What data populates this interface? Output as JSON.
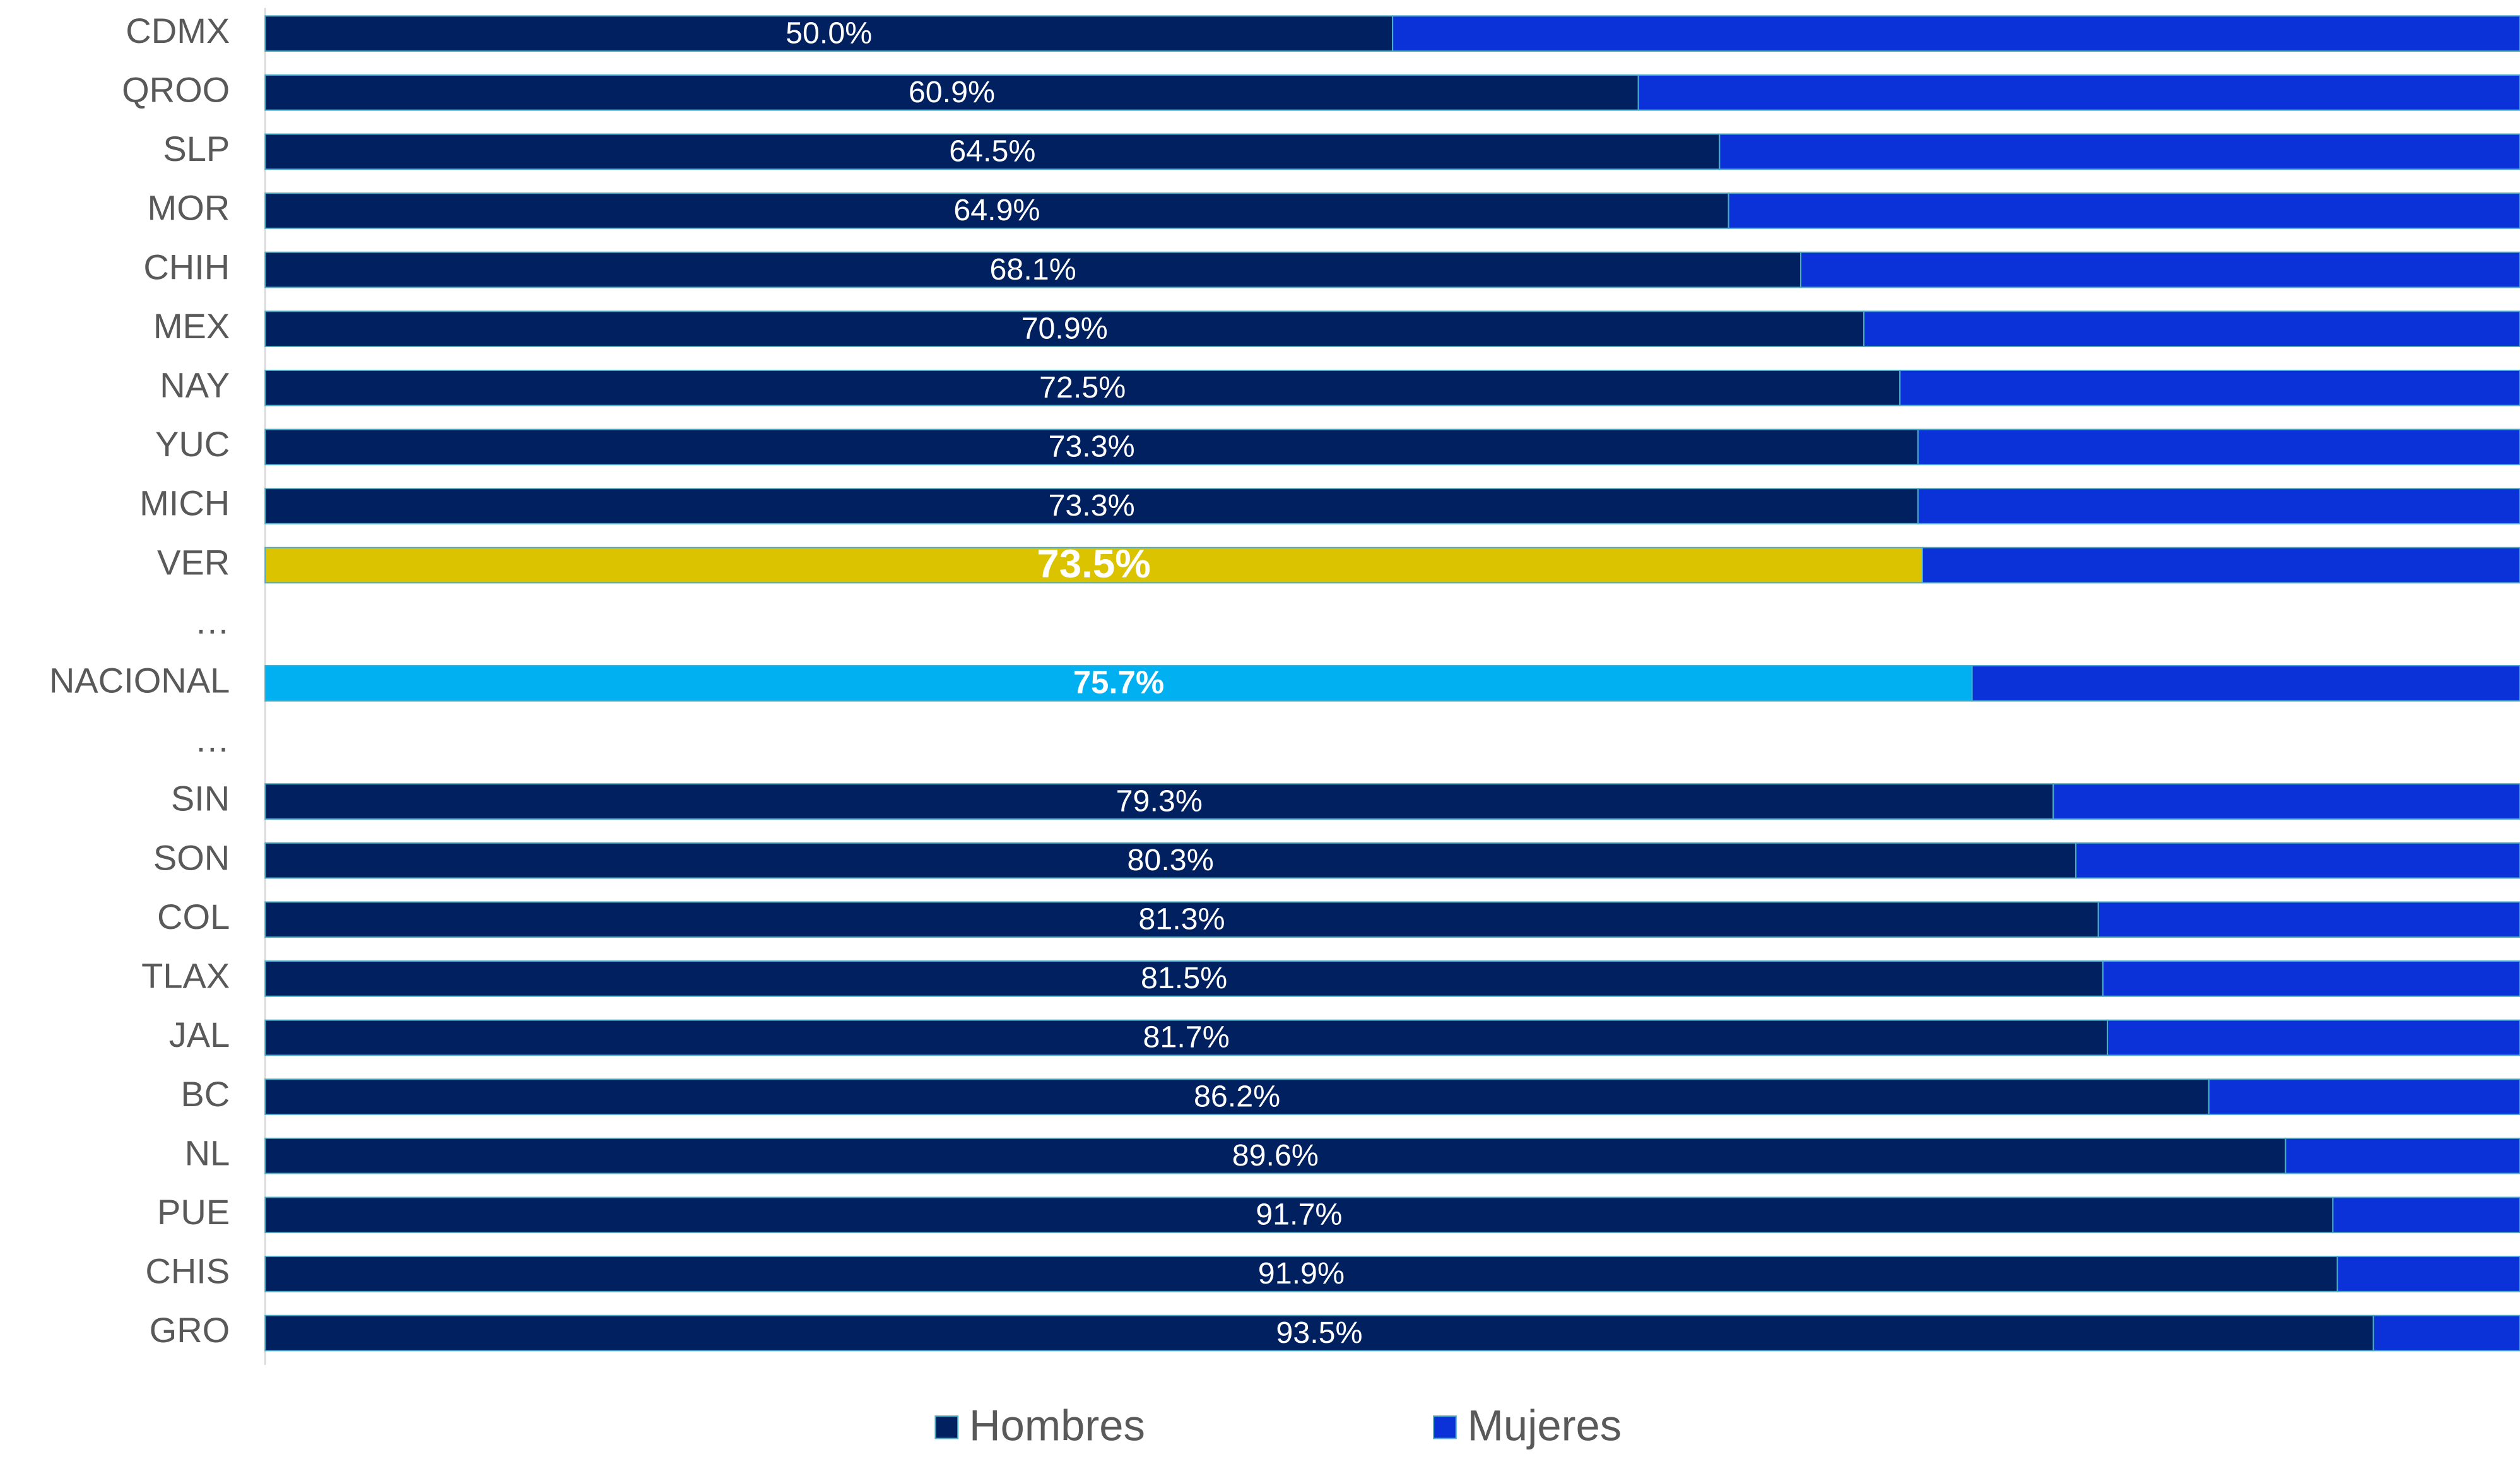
{
  "chart_data": {
    "type": "stacked_bar_horizontal_100",
    "categories": [
      "CDMX",
      "QROO",
      "SLP",
      "MOR",
      "CHIH",
      "MEX",
      "NAY",
      "YUC",
      "MICH",
      "VER",
      "…",
      "NACIONAL",
      "…",
      "SIN",
      "SON",
      "COL",
      "TLAX",
      "JAL",
      "BC",
      "NL",
      "PUE",
      "CHIS",
      "GRO"
    ],
    "series": [
      {
        "name": "Hombres",
        "color": "#002060",
        "values": [
          50.0,
          60.9,
          64.5,
          64.9,
          68.1,
          70.9,
          72.5,
          73.3,
          73.3,
          73.5,
          null,
          75.7,
          null,
          79.3,
          80.3,
          81.3,
          81.5,
          81.7,
          86.2,
          89.6,
          91.7,
          91.9,
          93.5
        ],
        "value_labels": [
          "50.0%",
          "60.9%",
          "64.5%",
          "64.9%",
          "68.1%",
          "70.9%",
          "72.5%",
          "73.3%",
          "73.3%",
          "73.5%",
          null,
          "75.7%",
          null,
          "79.3%",
          "80.3%",
          "81.3%",
          "81.5%",
          "81.7%",
          "86.2%",
          "89.6%",
          "91.7%",
          "91.9%",
          "93.5%"
        ],
        "colors": [
          "#002060",
          "#002060",
          "#002060",
          "#002060",
          "#002060",
          "#002060",
          "#002060",
          "#002060",
          "#002060",
          "#DCC300",
          null,
          "#00B0F0",
          null,
          "#002060",
          "#002060",
          "#002060",
          "#002060",
          "#002060",
          "#002060",
          "#002060",
          "#002060",
          "#002060",
          "#002060"
        ]
      },
      {
        "name": "Mujeres",
        "color": "#0A32D8",
        "values": [
          50.0,
          39.1,
          35.5,
          35.1,
          31.9,
          29.1,
          27.5,
          26.7,
          26.7,
          26.5,
          null,
          24.3,
          null,
          20.7,
          19.7,
          18.7,
          18.5,
          18.3,
          13.8,
          10.4,
          8.3,
          8.1,
          6.5
        ]
      }
    ],
    "xlim": [
      0,
      100
    ],
    "legend": "bottom"
  }
}
